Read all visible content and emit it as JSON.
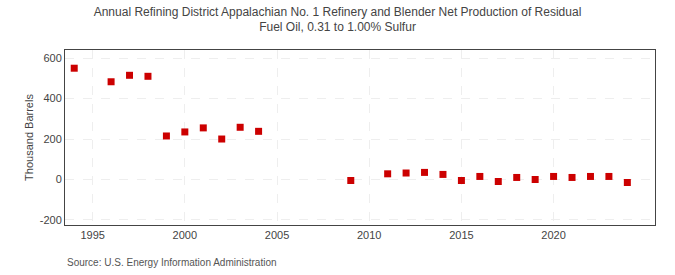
{
  "chart_data": {
    "type": "scatter",
    "title": "Annual Refining District Appalachian No. 1 Refinery and Blender Net Production of Residual\nFuel Oil, 0.31 to 1.00% Sulfur",
    "y_label": "Thousand Barrels",
    "annotation": "Source: U.S. Energy Information Administration",
    "x": [
      1994,
      1996,
      1997,
      1998,
      1999,
      2000,
      2001,
      2002,
      2003,
      2004,
      2009,
      2011,
      2012,
      2013,
      2014,
      2015,
      2016,
      2017,
      2018,
      2019,
      2020,
      2021,
      2022,
      2023,
      2024
    ],
    "values": [
      550,
      483,
      515,
      510,
      215,
      235,
      255,
      200,
      258,
      238,
      -5,
      28,
      32,
      35,
      25,
      -5,
      15,
      -10,
      10,
      0,
      15,
      10,
      15,
      15,
      -15
    ],
    "color": "#cc0000",
    "marker": "square",
    "xlim": [
      1993.5,
      2025.5
    ],
    "ylim": [
      -225,
      640
    ],
    "xticks": [
      1995,
      2000,
      2005,
      2010,
      2015,
      2020
    ],
    "yticks": [
      -200,
      0,
      200,
      400,
      600
    ],
    "grid": true
  }
}
